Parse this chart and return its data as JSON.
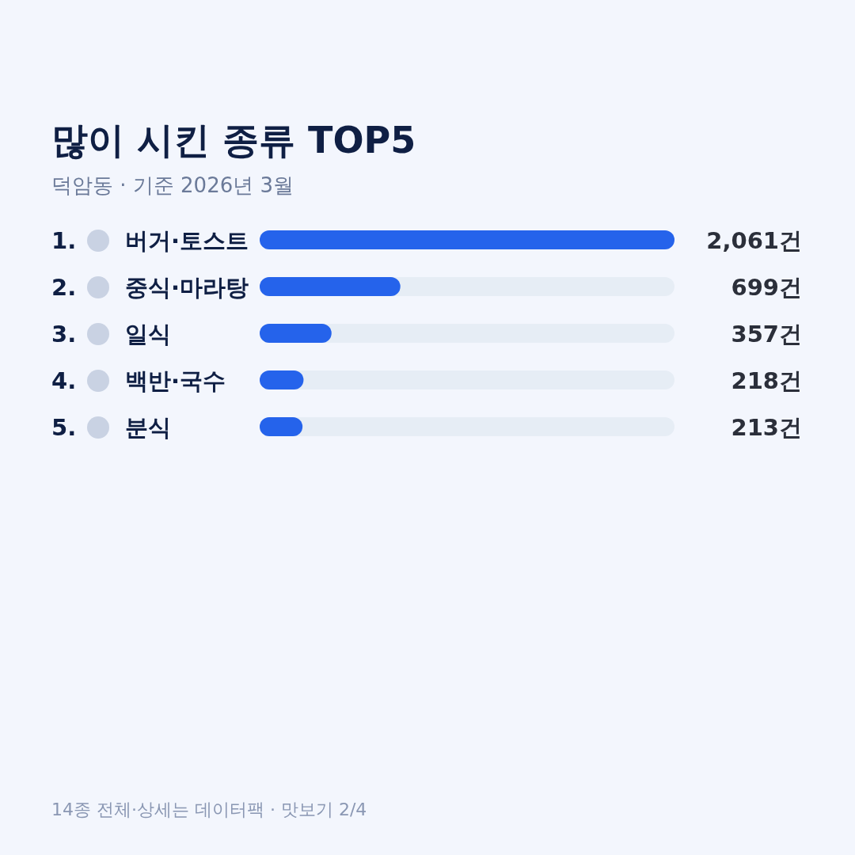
{
  "chart_data": {
    "type": "bar",
    "orientation": "horizontal",
    "title": "많이 시킨 종류 TOP5",
    "subtitle": "덕암동 · 기준 2026년 3월",
    "categories": [
      "1. 버거·토스트",
      "2. 중식·마라탕",
      "3. 일식",
      "4. 백반·국수",
      "5. 분식"
    ],
    "values": [
      2061,
      699,
      357,
      218,
      213
    ],
    "value_labels": [
      "2,061건",
      "699건",
      "357건",
      "218건",
      "213건"
    ],
    "color": "#2563eb",
    "bands": [
      {
        "axis": "x",
        "from": 0,
        "to": 2061,
        "color": "#e6edf5"
      }
    ],
    "xlim": [
      0,
      2061
    ],
    "annotations": [
      "14종 전체·상세는 데이터팩 · 맛보기 2/4"
    ]
  }
}
